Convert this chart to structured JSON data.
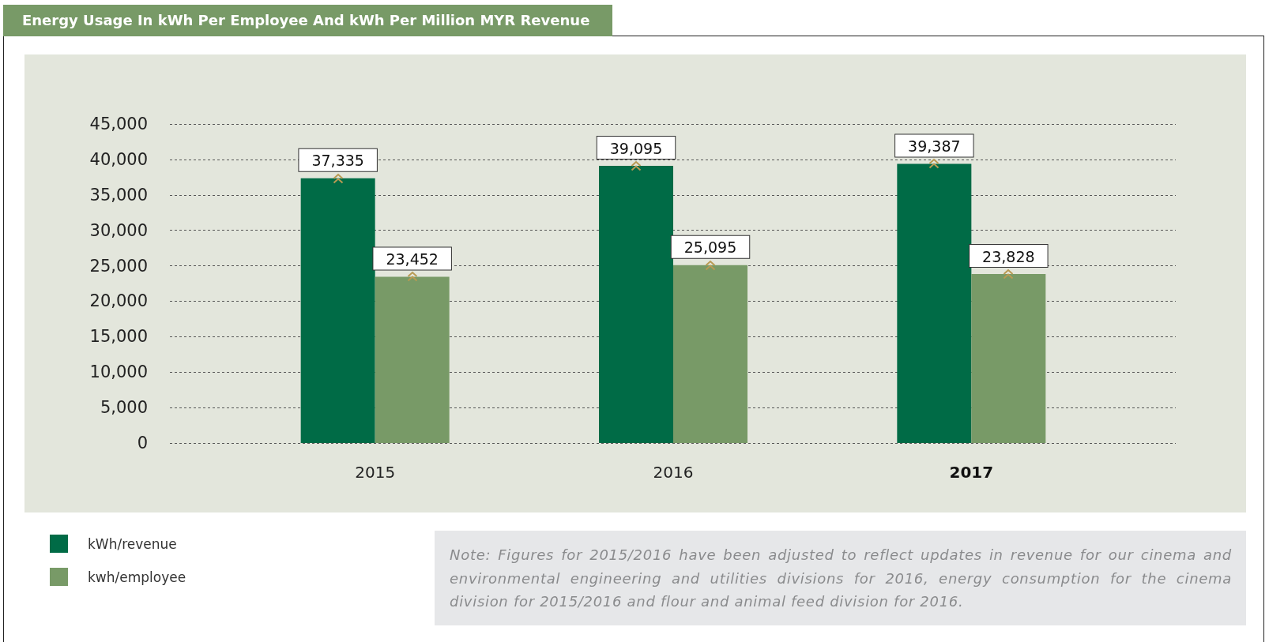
{
  "chart_data": {
    "type": "bar",
    "title": "Energy Usage In kWh Per Employee And kWh Per Million MYR Revenue",
    "categories": [
      "2015",
      "2016",
      "2017"
    ],
    "series": [
      {
        "name": "kWh/revenue",
        "color": "#006b46",
        "values": [
          37335,
          39095,
          39387
        ],
        "value_labels": [
          "37,335",
          "39,095",
          "39,387"
        ]
      },
      {
        "name": "kwh/employee",
        "color": "#789a67",
        "values": [
          23452,
          25095,
          23828
        ],
        "value_labels": [
          "23,452",
          "25,095",
          "23,828"
        ]
      }
    ],
    "ylim": [
      0,
      45000
    ],
    "yticks": [
      {
        "value": 0,
        "label": "0"
      },
      {
        "value": 5000,
        "label": "5,000"
      },
      {
        "value": 10000,
        "label": "10,000"
      },
      {
        "value": 15000,
        "label": "15,000"
      },
      {
        "value": 20000,
        "label": "20,000"
      },
      {
        "value": 25000,
        "label": "25,000"
      },
      {
        "value": 30000,
        "label": "30,000"
      },
      {
        "value": 35000,
        "label": "35,000"
      },
      {
        "value": 40000,
        "label": "40,000"
      },
      {
        "value": 45000,
        "label": "45,000"
      }
    ],
    "grid": "y",
    "legend": "bottom left",
    "annotations": [
      "Note: Figures for 2015/2016 have been adjusted to reflect updates in revenue for our cinema and environmental engineering and utilities divisions for 2016, energy consumption for the cinema division for 2015/2016 and flour and animal feed division for 2016."
    ]
  }
}
